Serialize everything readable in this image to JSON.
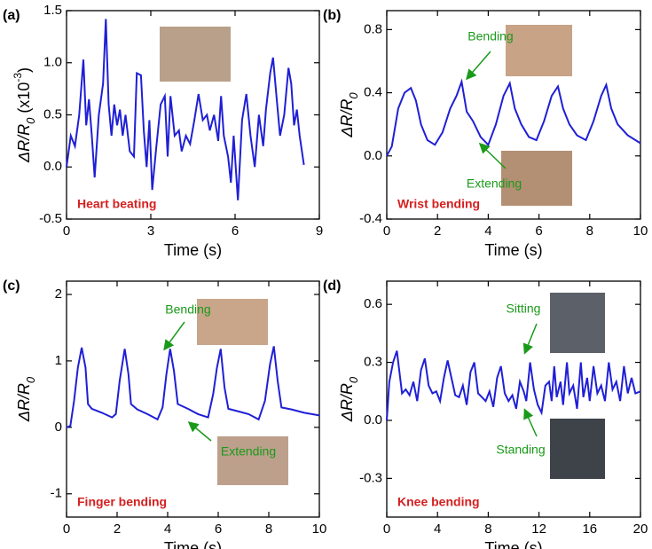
{
  "chart_data": [
    {
      "type": "line",
      "label": "(a)",
      "note": "Heart beating",
      "xlabel": "Time (s)",
      "ylabel_parts": [
        "ΔR/R",
        "0",
        " (x10",
        "-3",
        ")"
      ],
      "color": "#1f1fd6",
      "xlim": [
        0,
        9
      ],
      "xticks": [
        0,
        3,
        6,
        9
      ],
      "ylim": [
        -0.5,
        1.5
      ],
      "yticks": [
        -0.5,
        {
          "value": 0,
          "label": "0.0"
        },
        0.5,
        {
          "value": 1,
          "label": "1.0"
        },
        1.5
      ],
      "x": [
        0,
        0.15,
        0.3,
        0.45,
        0.6,
        0.7,
        0.8,
        0.9,
        1.0,
        1.15,
        1.3,
        1.4,
        1.5,
        1.6,
        1.7,
        1.8,
        1.9,
        2.0,
        2.1,
        2.25,
        2.4,
        2.5,
        2.65,
        2.75,
        2.85,
        2.95,
        3.05,
        3.2,
        3.35,
        3.5,
        3.6,
        3.7,
        3.85,
        4.0,
        4.1,
        4.25,
        4.4,
        4.55,
        4.7,
        4.85,
        5.0,
        5.1,
        5.25,
        5.4,
        5.5,
        5.6,
        5.75,
        5.85,
        5.95,
        6.1,
        6.25,
        6.4,
        6.55,
        6.7,
        6.85,
        7.0,
        7.1,
        7.25,
        7.35,
        7.5,
        7.6,
        7.75,
        7.9,
        8.0,
        8.1,
        8.2,
        8.3,
        8.45
      ],
      "values": [
        0,
        0.3,
        0.2,
        0.5,
        1.03,
        0.4,
        0.65,
        0.3,
        -0.1,
        0.5,
        0.8,
        1.42,
        0.6,
        0.3,
        0.6,
        0.4,
        0.55,
        0.3,
        0.5,
        0.15,
        0.1,
        0.9,
        0.88,
        0.35,
        0.0,
        0.45,
        -0.22,
        0.2,
        0.6,
        0.68,
        0.1,
        0.68,
        0.3,
        0.35,
        0.15,
        0.3,
        0.22,
        0.45,
        0.7,
        0.45,
        0.5,
        0.35,
        0.5,
        0.25,
        0.68,
        0.3,
        0.1,
        -0.15,
        0.3,
        -0.32,
        0.45,
        0.7,
        0.3,
        0.0,
        0.5,
        0.2,
        0.55,
        0.9,
        1.05,
        0.6,
        0.3,
        0.5,
        0.95,
        0.8,
        0.4,
        0.55,
        0.3,
        0.02
      ]
    },
    {
      "type": "line",
      "label": "(b)",
      "note": "Wrist bending",
      "xlabel": "Time (s)",
      "ylabel_parts": [
        "ΔR/R",
        "0"
      ],
      "color": "#1f1fd6",
      "annotations": [
        "Bending",
        "Extending"
      ],
      "xlim": [
        0,
        10
      ],
      "xticks": [
        0,
        2,
        4,
        6,
        8,
        10
      ],
      "ylim": [
        -0.4,
        0.92
      ],
      "yticks": [
        -0.4,
        {
          "value": 0,
          "label": "0.0"
        },
        0.4,
        0.8
      ],
      "x": [
        0,
        0.2,
        0.45,
        0.7,
        0.95,
        1.15,
        1.35,
        1.6,
        1.9,
        2.2,
        2.5,
        2.75,
        2.95,
        3.15,
        3.4,
        3.7,
        4.0,
        4.3,
        4.6,
        4.85,
        5.05,
        5.3,
        5.6,
        5.9,
        6.2,
        6.5,
        6.75,
        6.95,
        7.2,
        7.5,
        7.85,
        8.15,
        8.45,
        8.65,
        8.85,
        9.1,
        9.5,
        10.0
      ],
      "values": [
        0,
        0.06,
        0.3,
        0.4,
        0.43,
        0.35,
        0.2,
        0.1,
        0.07,
        0.15,
        0.3,
        0.38,
        0.47,
        0.28,
        0.22,
        0.12,
        0.07,
        0.2,
        0.38,
        0.46,
        0.3,
        0.2,
        0.12,
        0.1,
        0.22,
        0.38,
        0.44,
        0.3,
        0.2,
        0.13,
        0.1,
        0.22,
        0.38,
        0.45,
        0.3,
        0.2,
        0.13,
        0.08
      ]
    },
    {
      "type": "line",
      "label": "(c)",
      "note": "Finger bending",
      "xlabel": "Time (s)",
      "ylabel_parts": [
        "ΔR/R",
        "0"
      ],
      "color": "#1f1fd6",
      "annotations": [
        "Bending",
        "Extending"
      ],
      "xlim": [
        0,
        10
      ],
      "xticks": [
        0,
        2,
        4,
        6,
        8,
        10
      ],
      "ylim": [
        -1.35,
        2.2
      ],
      "yticks": [
        -1,
        0,
        1,
        2
      ],
      "x": [
        0,
        0.15,
        0.3,
        0.45,
        0.6,
        0.75,
        0.85,
        1.0,
        1.4,
        1.8,
        1.95,
        2.1,
        2.3,
        2.45,
        2.55,
        2.8,
        3.2,
        3.6,
        3.8,
        3.95,
        4.1,
        4.25,
        4.4,
        4.8,
        5.2,
        5.6,
        5.8,
        5.95,
        6.1,
        6.25,
        6.4,
        6.8,
        7.2,
        7.6,
        7.85,
        8.05,
        8.2,
        8.35,
        8.5,
        8.9,
        9.4,
        10
      ],
      "values": [
        0,
        0.02,
        0.4,
        0.9,
        1.2,
        0.9,
        0.35,
        0.28,
        0.22,
        0.15,
        0.2,
        0.7,
        1.18,
        0.8,
        0.35,
        0.27,
        0.2,
        0.12,
        0.3,
        0.8,
        1.18,
        0.85,
        0.35,
        0.28,
        0.2,
        0.15,
        0.5,
        0.9,
        1.18,
        0.6,
        0.28,
        0.24,
        0.2,
        0.12,
        0.4,
        0.95,
        1.22,
        0.7,
        0.3,
        0.27,
        0.22,
        0.18
      ]
    },
    {
      "type": "line",
      "label": "(d)",
      "note": "Knee bending",
      "xlabel": "Time (s)",
      "ylabel_parts": [
        "ΔR/R",
        "0"
      ],
      "color": "#1f1fd6",
      "annotations": [
        "Sitting",
        "Standing"
      ],
      "xlim": [
        0,
        20
      ],
      "xticks": [
        0,
        4,
        8,
        12,
        16,
        20
      ],
      "ylim": [
        -0.5,
        0.72
      ],
      "yticks": [
        -0.3,
        {
          "value": 0,
          "label": "0.0"
        },
        0.3,
        0.6
      ],
      "x": [
        0,
        0.2,
        0.5,
        0.8,
        1.0,
        1.2,
        1.5,
        1.8,
        2.1,
        2.4,
        2.7,
        3.0,
        3.3,
        3.6,
        3.9,
        4.2,
        4.5,
        4.8,
        5.1,
        5.4,
        5.7,
        6.0,
        6.3,
        6.6,
        6.9,
        7.2,
        7.5,
        7.8,
        8.1,
        8.4,
        8.7,
        9.0,
        9.3,
        9.6,
        9.9,
        10.2,
        10.5,
        10.8,
        11.0,
        11.3,
        11.6,
        11.9,
        12.2,
        12.5,
        12.8,
        13.0,
        13.2,
        13.4,
        13.7,
        13.9,
        14.2,
        14.4,
        14.7,
        15.0,
        15.3,
        15.5,
        15.8,
        16.0,
        16.3,
        16.6,
        16.9,
        17.2,
        17.5,
        17.8,
        18.1,
        18.4,
        18.7,
        19.0,
        19.3,
        19.6,
        20
      ],
      "values": [
        0,
        0.2,
        0.3,
        0.36,
        0.25,
        0.14,
        0.16,
        0.13,
        0.2,
        0.1,
        0.26,
        0.32,
        0.18,
        0.14,
        0.15,
        0.1,
        0.22,
        0.31,
        0.22,
        0.13,
        0.12,
        0.18,
        0.08,
        0.25,
        0.3,
        0.14,
        0.12,
        0.1,
        0.15,
        0.07,
        0.22,
        0.28,
        0.14,
        0.1,
        0.13,
        0.06,
        0.2,
        0.15,
        0.1,
        0.3,
        0.16,
        0.08,
        0.04,
        0.18,
        0.2,
        0.1,
        0.28,
        0.12,
        0.2,
        0.08,
        0.3,
        0.14,
        0.18,
        0.06,
        0.3,
        0.12,
        0.22,
        0.1,
        0.28,
        0.14,
        0.18,
        0.1,
        0.3,
        0.16,
        0.2,
        0.1,
        0.28,
        0.14,
        0.22,
        0.14,
        0.15
      ]
    }
  ]
}
